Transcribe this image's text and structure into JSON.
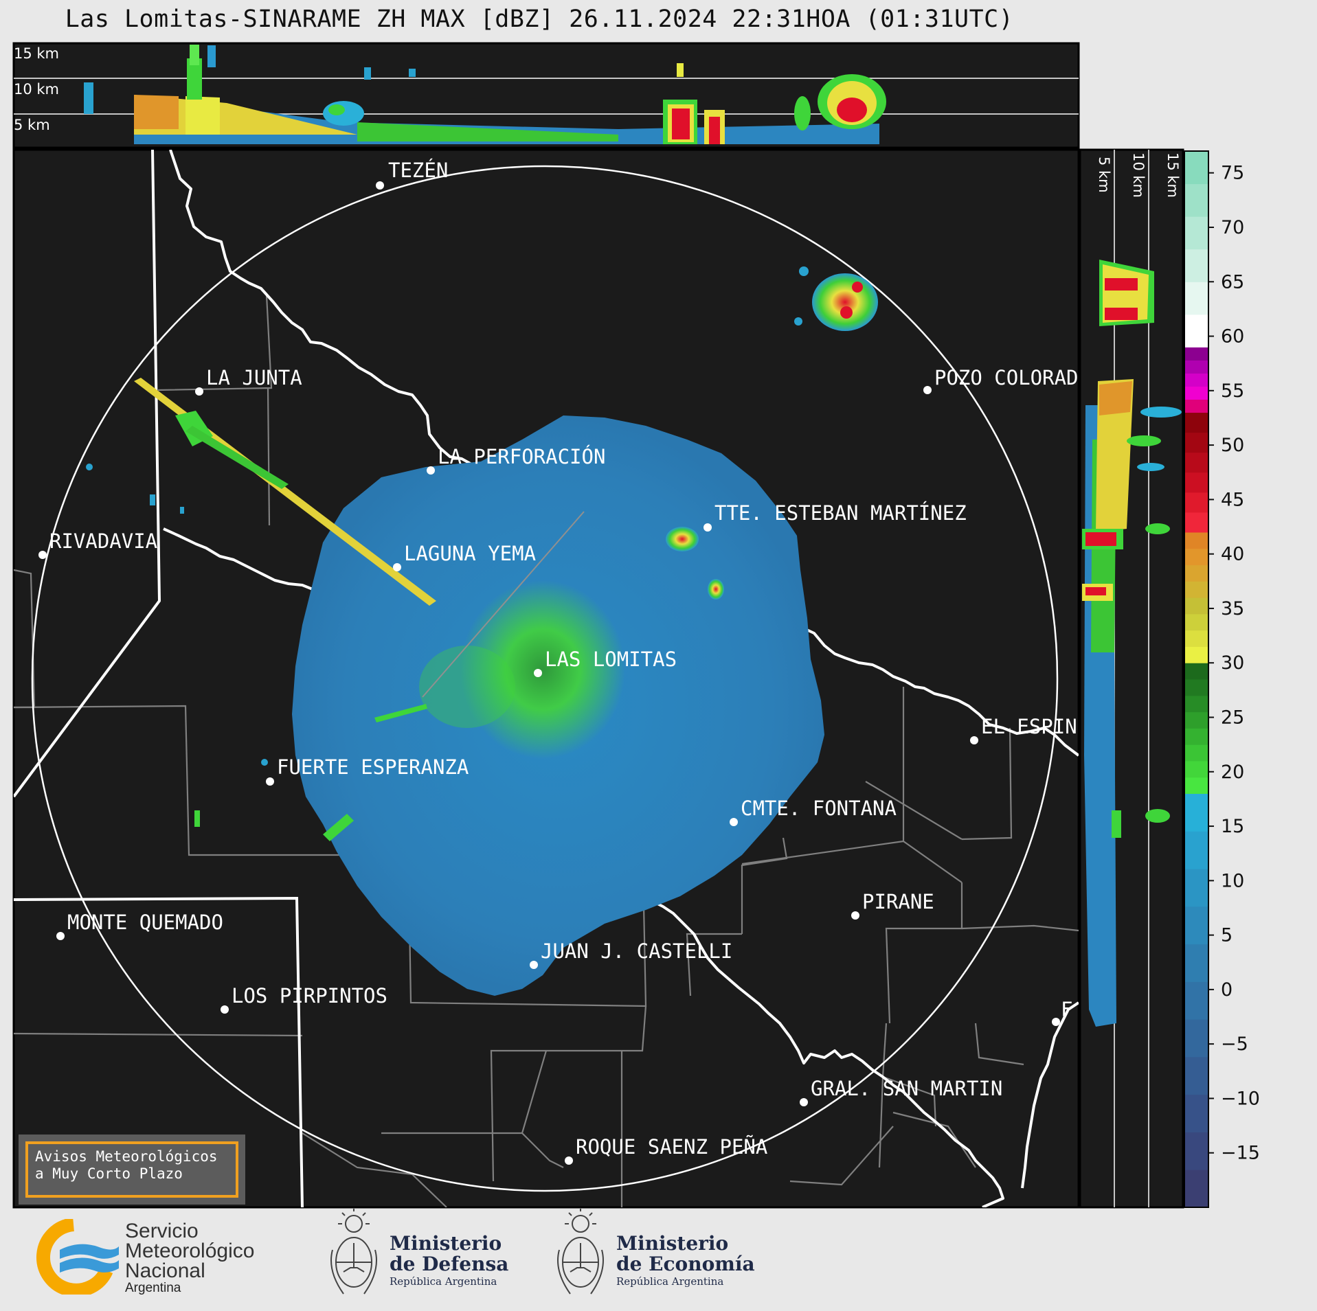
{
  "title": "Las Lomitas-SINARAME ZH MAX [dBZ] 26.11.2024 22:31HOA (01:31UTC)",
  "top_profile": {
    "height_labels": [
      "15 km",
      "10 km",
      "5 km"
    ]
  },
  "side_profile": {
    "height_labels": [
      "5 km",
      "10 km",
      "15 km"
    ]
  },
  "colorbar": {
    "unit": "dBZ",
    "ticks": [
      "75",
      "70",
      "65",
      "60",
      "55",
      "50",
      "45",
      "40",
      "35",
      "30",
      "25",
      "20",
      "15",
      "10",
      "5",
      "0",
      "−5",
      "−10",
      "−15"
    ],
    "range": [
      -20,
      77
    ],
    "stops": [
      {
        "from": -20,
        "to": 18,
        "colors": [
          "#3b3f72",
          "#39487e",
          "#375289",
          "#355d93",
          "#33689d",
          "#3173a7",
          "#2f7eb0",
          "#2d8abb",
          "#2b95c4",
          "#29a2cf",
          "#27b0d8"
        ]
      },
      {
        "from": 18,
        "to": 30,
        "colors": [
          "#48e640",
          "#42d63a",
          "#3bc535",
          "#34b230",
          "#2e9f2b",
          "#278c26",
          "#217a21",
          "#1c6a1c"
        ]
      },
      {
        "from": 30,
        "to": 42,
        "colors": [
          "#eaf044",
          "#dcdf3f",
          "#cdd03a",
          "#c5c036",
          "#d2b433",
          "#daa52f",
          "#e2962b",
          "#e08526"
        ]
      },
      {
        "from": 42,
        "to": 53,
        "colors": [
          "#f0263a",
          "#e01a2c",
          "#cc0f22",
          "#b80a1a",
          "#a30612",
          "#8e030c"
        ]
      },
      {
        "from": 53,
        "to": 59,
        "colors": [
          "#e0007a",
          "#f000d0",
          "#d400c8",
          "#b000b0",
          "#8c0090"
        ]
      },
      {
        "from": 59,
        "to": 77,
        "colors": [
          "#ffffff",
          "#e6f7f0",
          "#cdefe2",
          "#b5e8d5",
          "#9ee1c8",
          "#88dbbd"
        ]
      }
    ]
  },
  "radar": {
    "site": "LAS LOMITAS",
    "range_ring": true
  },
  "cities": [
    {
      "name": "TEZÉN"
    },
    {
      "name": "LA JUNTA"
    },
    {
      "name": "POZO COLORAD"
    },
    {
      "name": "LA PERFORACIÓN"
    },
    {
      "name": "TTE. ESTEBAN MARTÍNEZ"
    },
    {
      "name": "RIVADAVIA"
    },
    {
      "name": "LAGUNA YEMA"
    },
    {
      "name": "LAS LOMITAS"
    },
    {
      "name": "EL ESPIN"
    },
    {
      "name": "FUERTE ESPERANZA"
    },
    {
      "name": "CMTE. FONTANA"
    },
    {
      "name": "PIRANE"
    },
    {
      "name": "MONTE QUEMADO"
    },
    {
      "name": "JUAN J. CASTELLI"
    },
    {
      "name": "LOS PIRPINTOS"
    },
    {
      "name": "F"
    },
    {
      "name": "GRAL. SAN MARTIN"
    },
    {
      "name": "ROQUE SAENZ PEÑA"
    }
  ],
  "alert_box": {
    "line1": "Avisos Meteorológicos",
    "line2": "a Muy Corto Plazo"
  },
  "footer": {
    "smn": {
      "line1": "Servicio",
      "line2": "Meteorológico",
      "line3": "Nacional",
      "line4": "Argentina"
    },
    "defensa": {
      "line1": "Ministerio",
      "line2": "de Defensa",
      "line3": "República Argentina"
    },
    "economia": {
      "line1": "Ministerio",
      "line2": "de Economía",
      "line3": "República Argentina"
    }
  },
  "colors": {
    "map_background": "#1b1b1b",
    "frame_background": "#e8e8e8",
    "echo_light": "#2f86c0",
    "echo_green": "#3fd53a",
    "accent_orange": "#f0a020"
  }
}
